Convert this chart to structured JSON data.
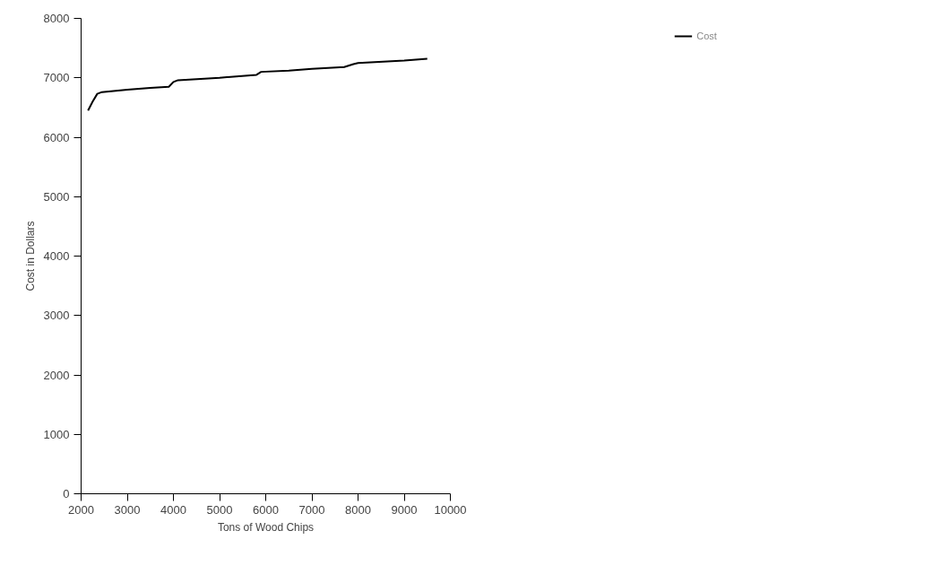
{
  "chart_data": {
    "type": "line",
    "xlabel": "Tons of Wood Chips",
    "ylabel": "Cost in Dollars",
    "xlim": [
      2000,
      10000
    ],
    "xticks": [
      2000,
      3000,
      4000,
      5000,
      6000,
      7000,
      8000,
      9000,
      10000
    ],
    "ylim": [
      0,
      8000
    ],
    "yticks": [
      0,
      1000,
      2000,
      3000,
      4000,
      5000,
      6000,
      7000,
      8000
    ],
    "grid": false,
    "legend": "top right",
    "line_style": "solid",
    "series": [
      {
        "name": "Cost",
        "color": "#000000",
        "x": [
          2150,
          2250,
          2350,
          2450,
          3000,
          3500,
          3900,
          4000,
          4100,
          5000,
          5800,
          5900,
          6500,
          7000,
          7700,
          7900,
          8000,
          9000,
          9500
        ],
        "values": [
          6450,
          6600,
          6730,
          6760,
          6800,
          6830,
          6850,
          6930,
          6960,
          7000,
          7050,
          7100,
          7120,
          7150,
          7180,
          7230,
          7250,
          7290,
          7320
        ]
      }
    ]
  }
}
